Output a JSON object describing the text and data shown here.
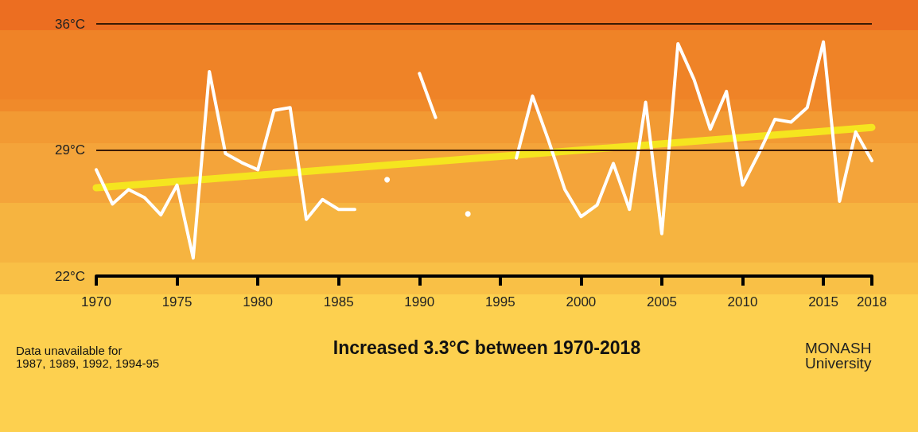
{
  "chart_data": {
    "type": "line",
    "title": "Increased 3.3°C between 1970-2018",
    "annotations": [
      "Data unavailable for\n1987, 1989, 1992, 1994-95",
      "MONASH\nUniversity"
    ],
    "x": [
      1970,
      1971,
      1972,
      1973,
      1974,
      1975,
      1976,
      1977,
      1978,
      1979,
      1980,
      1981,
      1982,
      1983,
      1984,
      1985,
      1986,
      1987,
      1988,
      1989,
      1990,
      1991,
      1992,
      1993,
      1994,
      1995,
      1996,
      1997,
      1998,
      1999,
      2000,
      2001,
      2002,
      2003,
      2004,
      2005,
      2006,
      2007,
      2008,
      2009,
      2010,
      2011,
      2012,
      2013,
      2014,
      2015,
      2016,
      2017,
      2018
    ],
    "series": [
      {
        "color": "#ffffff",
        "values": [
          27.9,
          26.0,
          26.8,
          26.35,
          25.4,
          27.05,
          23.0,
          33.35,
          28.8,
          28.3,
          27.9,
          31.2,
          31.35,
          25.15,
          26.25,
          25.7,
          25.7,
          null,
          27.35,
          null,
          33.25,
          30.8,
          null,
          25.45,
          null,
          null,
          28.55,
          32.0,
          29.5,
          26.8,
          25.3,
          25.95,
          28.25,
          25.7,
          31.65,
          24.35,
          34.9,
          32.9,
          30.15,
          32.25,
          27.05,
          28.8,
          30.7,
          30.55,
          31.35,
          35.0,
          26.15,
          30.0,
          28.4
        ]
      },
      {
        "type": "line",
        "color": "#f5e51f",
        "x": [
          1970,
          2018
        ],
        "values": [
          26.9,
          30.25
        ]
      }
    ],
    "xlim": [
      1970,
      2018
    ],
    "xticks": [
      1970,
      1975,
      1980,
      1985,
      1990,
      1995,
      2000,
      2005,
      2010,
      2015,
      2018
    ],
    "ylim": [
      22,
      36
    ],
    "yticks": [
      {
        "value": 22,
        "label": "22°C"
      },
      {
        "value": 29,
        "label": "29°C"
      },
      {
        "value": 36,
        "label": "36°C"
      }
    ],
    "ref_lines": [
      {
        "axis": "y",
        "value": 29,
        "color": "#3a1a05"
      },
      {
        "axis": "y",
        "value": 36,
        "color": "#3a1a05"
      }
    ],
    "marker": "none",
    "line_style": "solid"
  }
}
